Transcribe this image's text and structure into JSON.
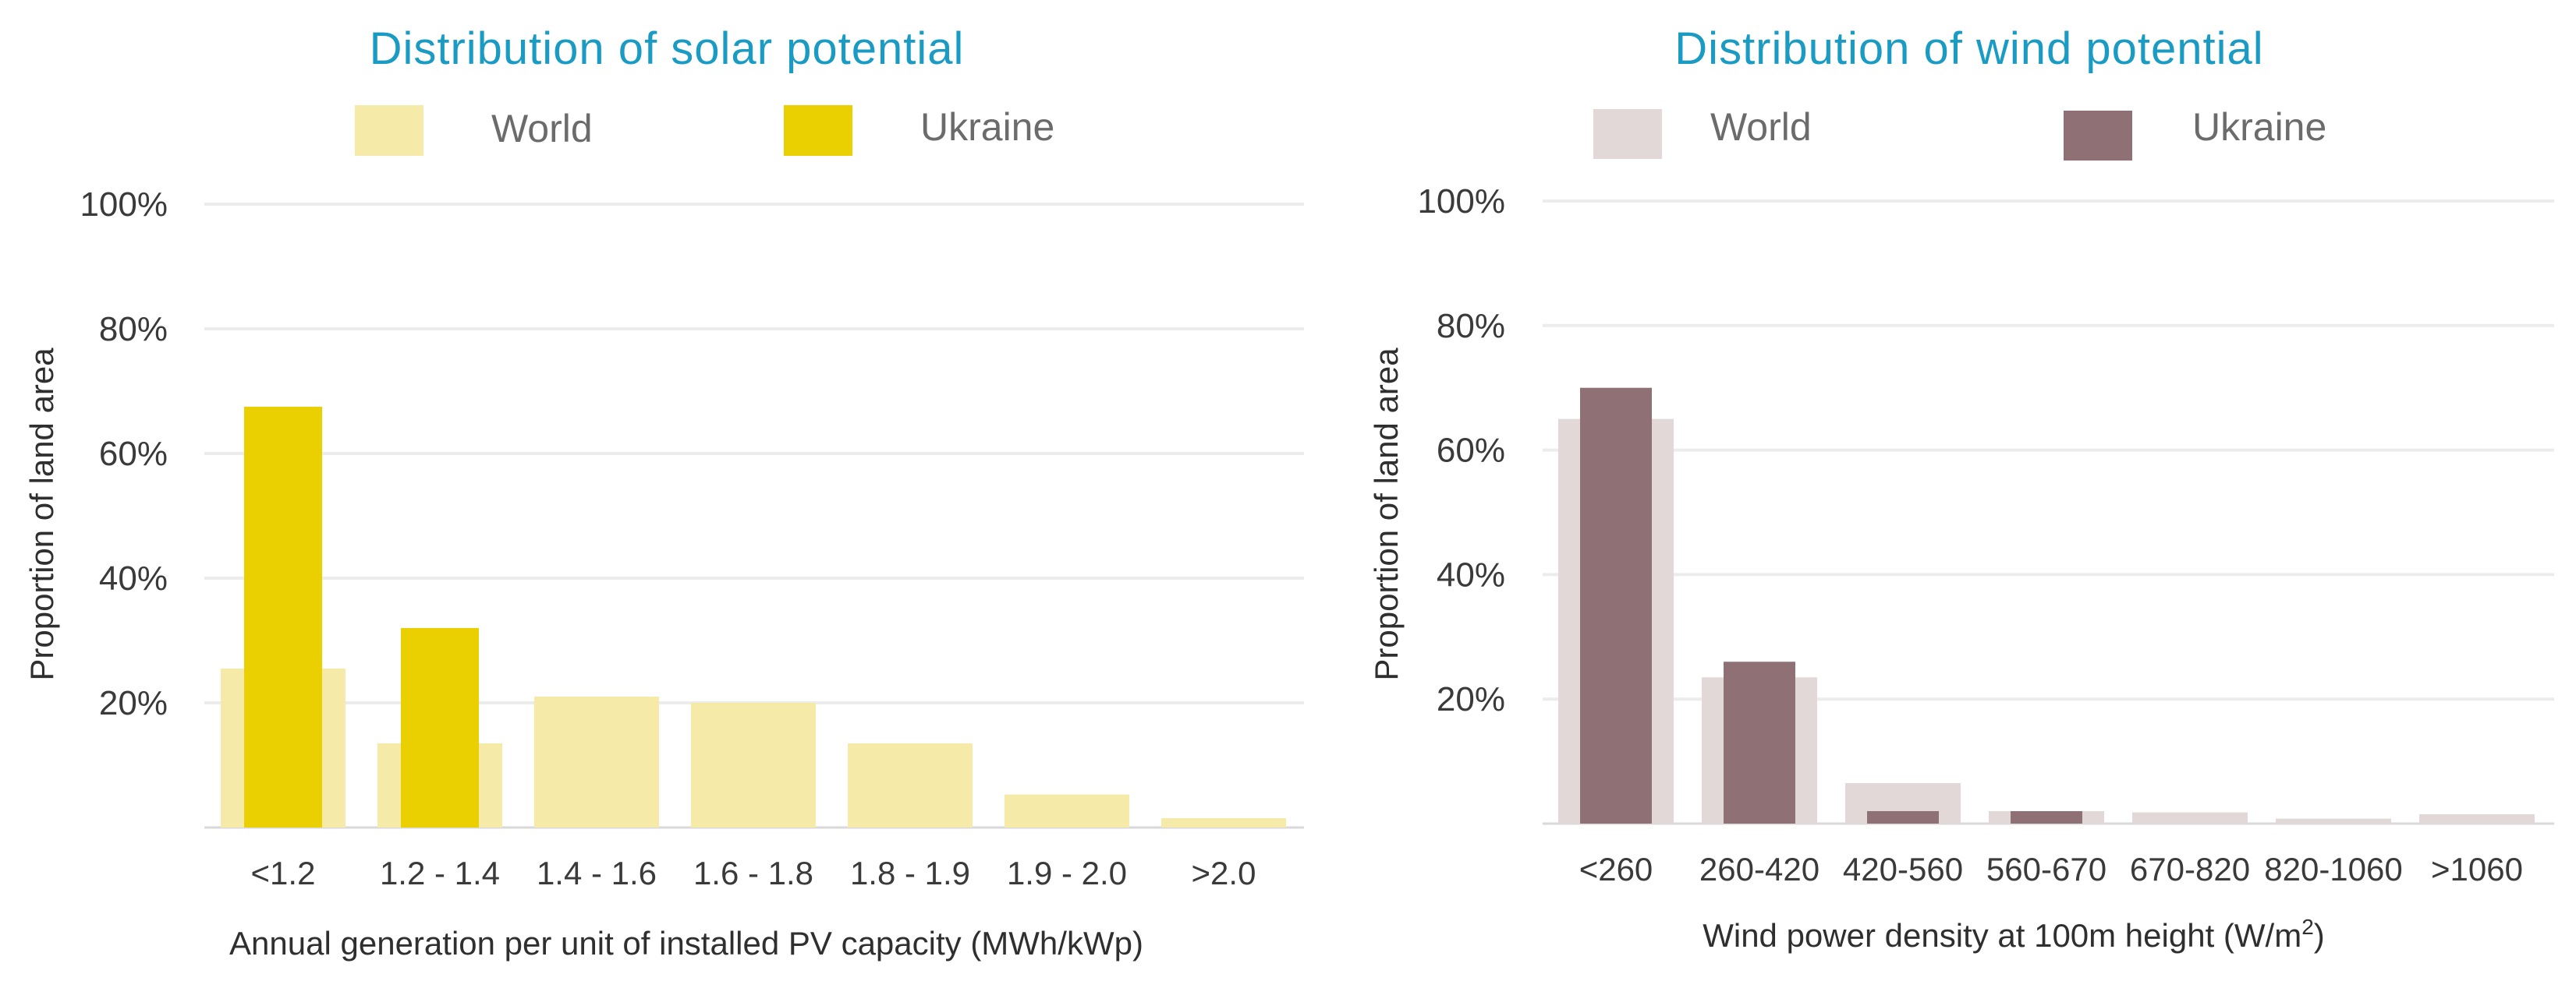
{
  "chart_data": [
    {
      "type": "bar",
      "title": "Distribution of solar potential",
      "title_color": "#1a9bc4",
      "categories": [
        "<1.2",
        "1.2 - 1.4",
        "1.4 - 1.6",
        "1.6 - 1.8",
        "1.8 - 1.9",
        "1.9 - 2.0",
        ">2.0"
      ],
      "series": [
        {
          "name": "World",
          "color": "#f5eaa8",
          "values": [
            25.5,
            13.5,
            21,
            20,
            13.5,
            5.3,
            1.5
          ]
        },
        {
          "name": "Ukraine",
          "color": "#ead000",
          "values": [
            67.5,
            32,
            0,
            0,
            0,
            0,
            0
          ]
        }
      ],
      "ylim": [
        0,
        100
      ],
      "yticks": [
        20,
        40,
        60,
        80,
        100
      ],
      "ytick_labels": [
        "20%",
        "40%",
        "60%",
        "80%",
        "100%"
      ],
      "xlabel": "Annual generation per unit of installed PV capacity (MWh/kWp)",
      "ylabel": "Proportion of land area",
      "legend": "top"
    },
    {
      "type": "bar",
      "title": "Distribution of wind potential",
      "title_color": "#1a9bc4",
      "categories": [
        "<260",
        "260-420",
        "420-560",
        "560-670",
        "670-820",
        "820-1060",
        ">1060"
      ],
      "series": [
        {
          "name": "World",
          "color": "#e3d8d8",
          "values": [
            65,
            23.5,
            6.5,
            2,
            1.8,
            0.8,
            1.5
          ]
        },
        {
          "name": "Ukraine",
          "color": "#8f7175",
          "values": [
            70,
            26,
            2,
            2,
            0,
            0,
            0
          ]
        }
      ],
      "ylim": [
        0,
        100
      ],
      "yticks": [
        20,
        40,
        60,
        80,
        100
      ],
      "ytick_labels": [
        "20%",
        "40%",
        "60%",
        "80%",
        "100%"
      ],
      "xlabel_main": "Wind power density at 100m height (W/m",
      "xlabel_sup": "2",
      "xlabel_end": ")",
      "ylabel": "Proportion of land area",
      "legend": "top"
    }
  ]
}
